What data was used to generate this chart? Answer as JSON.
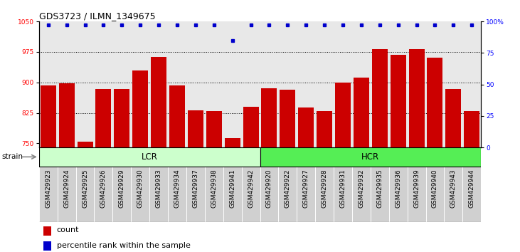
{
  "title": "GDS3723 / ILMN_1349675",
  "samples": [
    "GSM429923",
    "GSM429924",
    "GSM429925",
    "GSM429926",
    "GSM429929",
    "GSM429930",
    "GSM429933",
    "GSM429934",
    "GSM429937",
    "GSM429938",
    "GSM429941",
    "GSM429942",
    "GSM429920",
    "GSM429922",
    "GSM429927",
    "GSM429928",
    "GSM429931",
    "GSM429932",
    "GSM429935",
    "GSM429936",
    "GSM429939",
    "GSM429940",
    "GSM429943",
    "GSM429944"
  ],
  "counts": [
    893,
    897,
    754,
    884,
    884,
    930,
    963,
    893,
    831,
    829,
    763,
    840,
    886,
    882,
    839,
    829,
    900,
    912,
    982,
    968,
    982,
    960,
    884,
    829
  ],
  "percentile_ranks": [
    97,
    97,
    97,
    97,
    97,
    97,
    97,
    97,
    97,
    97,
    85,
    97,
    97,
    97,
    97,
    97,
    97,
    97,
    97,
    97,
    97,
    97,
    97,
    97
  ],
  "lcr_count": 12,
  "hcr_count": 12,
  "group_colors": {
    "LCR": "#ccffcc",
    "HCR": "#55ee55"
  },
  "bar_color": "#cc0000",
  "dot_color": "#0000cc",
  "ylim_left": [
    740,
    1050
  ],
  "ylim_right": [
    0,
    100
  ],
  "yticks_left": [
    750,
    825,
    900,
    975,
    1050
  ],
  "yticks_right": [
    0,
    25,
    50,
    75,
    100
  ],
  "ytick_right_labels": [
    "0",
    "25",
    "50",
    "75",
    "100%"
  ],
  "plot_bg": "#e8e8e8",
  "tick_bg": "#d0d0d0",
  "title_fontsize": 9,
  "tick_fontsize": 6.5,
  "legend_items": [
    "count",
    "percentile rank within the sample"
  ]
}
